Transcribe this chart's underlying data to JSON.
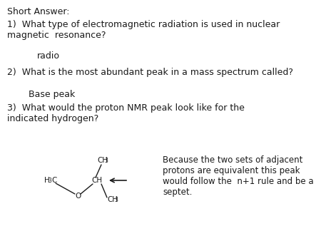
{
  "bg_color": "#ffffff",
  "title": "Short Answer:",
  "q1": "1)  What type of electromagnetic radiation is used in nuclear\nmagnetic  resonance?",
  "a1": "radio",
  "q2": "2)  What is the most abundant peak in a mass spectrum called?",
  "a2": "Base peak",
  "q3": "3)  What would the proton NMR peak look like for the\nindicated hydrogen?",
  "answer3": "Because the two sets of adjacent\nprotons are equivalent this peak\nwould follow the  n+1 rule and be a\nseptet.",
  "font_size_q": 9.0,
  "font_size_a": 9.0,
  "text_color": "#1a1a1a",
  "mol_fs": 7.5,
  "mol_fs_sub": 5.5
}
